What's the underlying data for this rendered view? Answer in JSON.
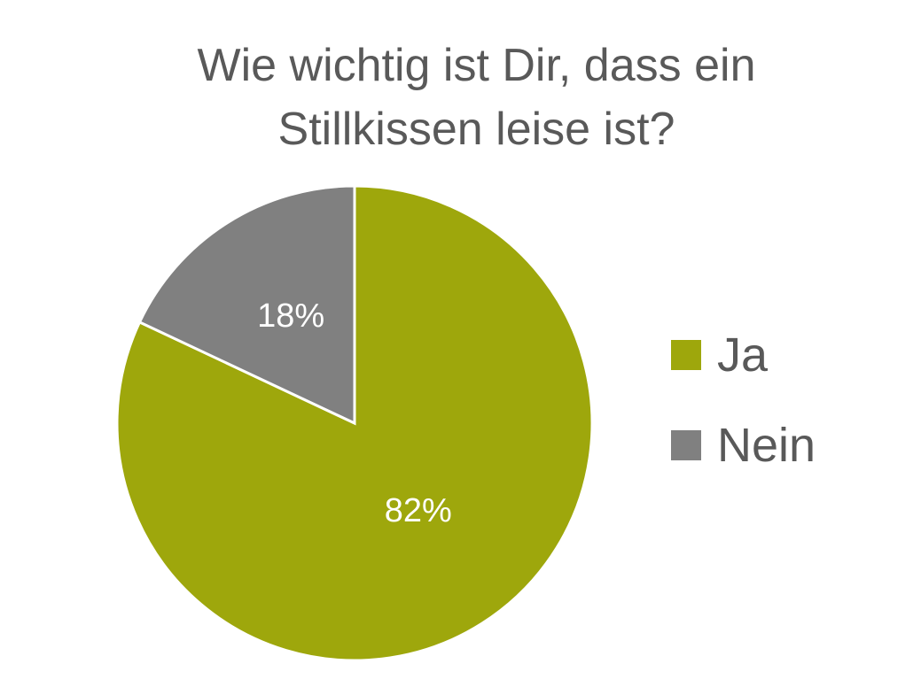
{
  "chart_data": {
    "type": "pie",
    "title": "Wie wichtig ist Dir, dass ein Stillkissen leise ist?",
    "title_lines": [
      "Wie wichtig ist Dir, dass ein",
      "Stillkissen leise ist?"
    ],
    "categories": [
      "Ja",
      "Nein"
    ],
    "values": [
      82,
      18
    ],
    "labels": [
      "82%",
      "18%"
    ],
    "colors": [
      "#9EA70C",
      "#808080"
    ],
    "legend": "right"
  }
}
